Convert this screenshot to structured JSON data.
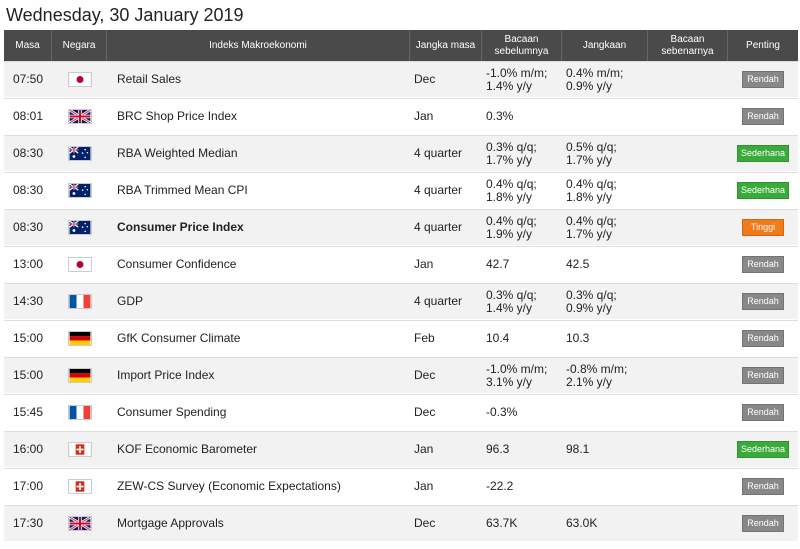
{
  "page": {
    "date_title": "Wednesday, 30 January 2019"
  },
  "table": {
    "headers": [
      "Masa",
      "Negara",
      "Indeks Makroekonomi",
      "Jangka masa",
      "Bacaan sebelumnya",
      "Jangkaan",
      "Bacaan sebenarnya",
      "Penting"
    ],
    "rows": [
      {
        "time": "07:50",
        "flag": "jp",
        "name": "Retail Sales",
        "bold": false,
        "period": "Dec",
        "prev": "-1.0% m/m; 1.4% y/y",
        "forecast": "0.4% m/m; 0.9% y/y",
        "actual": "",
        "importance": "Rendah",
        "level": "low"
      },
      {
        "time": "08:01",
        "flag": "gb",
        "name": "BRC Shop Price Index",
        "bold": false,
        "period": "Jan",
        "prev": "0.3%",
        "forecast": "",
        "actual": "",
        "importance": "Rendah",
        "level": "low"
      },
      {
        "time": "08:30",
        "flag": "au",
        "name": "RBA Weighted Median",
        "bold": false,
        "period": "4 quarter",
        "prev": "0.3% q/q; 1.7% y/y",
        "forecast": "0.5% q/q; 1.7% y/y",
        "actual": "",
        "importance": "Sederhana",
        "level": "mid"
      },
      {
        "time": "08:30",
        "flag": "au",
        "name": "RBA Trimmed Mean CPI",
        "bold": false,
        "period": "4 quarter",
        "prev": "0.4% q/q; 1.8% y/y",
        "forecast": "0.4% q/q; 1.8% y/y",
        "actual": "",
        "importance": "Sederhana",
        "level": "mid"
      },
      {
        "time": "08:30",
        "flag": "au",
        "name": "Consumer Price Index",
        "bold": true,
        "period": "4 quarter",
        "prev": "0.4% q/q; 1.9% y/y",
        "forecast": "0.4% q/q; 1.7% y/y",
        "actual": "",
        "importance": "Tinggi",
        "level": "high"
      },
      {
        "time": "13:00",
        "flag": "jp",
        "name": "Consumer Confidence",
        "bold": false,
        "period": "Jan",
        "prev": "42.7",
        "forecast": "42.5",
        "actual": "",
        "importance": "Rendah",
        "level": "low"
      },
      {
        "time": "14:30",
        "flag": "fr",
        "name": "GDP",
        "bold": false,
        "period": "4 quarter",
        "prev": "0.3% q/q; 1.4% y/y",
        "forecast": "0.3% q/q; 0.9% y/y",
        "actual": "",
        "importance": "Rendah",
        "level": "low"
      },
      {
        "time": "15:00",
        "flag": "de",
        "name": "GfK Consumer Climate",
        "bold": false,
        "period": "Feb",
        "prev": "10.4",
        "forecast": "10.3",
        "actual": "",
        "importance": "Rendah",
        "level": "low"
      },
      {
        "time": "15:00",
        "flag": "de",
        "name": "Import Price Index",
        "bold": false,
        "period": "Dec",
        "prev": "-1.0% m/m; 3.1% y/y",
        "forecast": "-0.8% m/m; 2.1% y/y",
        "actual": "",
        "importance": "Rendah",
        "level": "low"
      },
      {
        "time": "15:45",
        "flag": "fr",
        "name": "Consumer Spending",
        "bold": false,
        "period": "Dec",
        "prev": "-0.3%",
        "forecast": "",
        "actual": "",
        "importance": "Rendah",
        "level": "low"
      },
      {
        "time": "16:00",
        "flag": "ch",
        "name": "KOF Economic Barometer",
        "bold": false,
        "period": "Jan",
        "prev": "96.3",
        "forecast": "98.1",
        "actual": "",
        "importance": "Sederhana",
        "level": "mid"
      },
      {
        "time": "17:00",
        "flag": "ch",
        "name": "ZEW-CS Survey (Economic Expectations)",
        "bold": false,
        "period": "Jan",
        "prev": "-22.2",
        "forecast": "",
        "actual": "",
        "importance": "Rendah",
        "level": "low"
      },
      {
        "time": "17:30",
        "flag": "gb",
        "name": "Mortgage Approvals",
        "bold": false,
        "period": "Dec",
        "prev": "63.7K",
        "forecast": "63.0K",
        "actual": "",
        "importance": "Rendah",
        "level": "low"
      }
    ]
  },
  "colors": {
    "header_bg": "#4a4a4a",
    "low": "#888888",
    "mid": "#3aab3a",
    "high": "#f07b1a"
  }
}
